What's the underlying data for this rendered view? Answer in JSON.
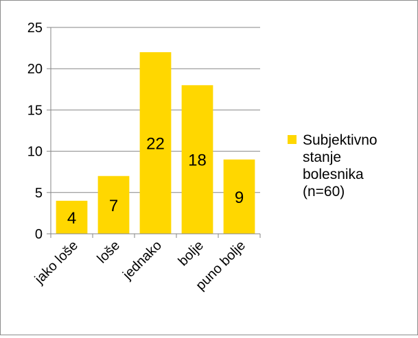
{
  "chart_data": {
    "type": "bar",
    "categories": [
      "jako loše",
      "loše",
      "jednako",
      "bolje",
      "puno bolje"
    ],
    "series": [
      {
        "name": "Subjektivno stanje bolesnika (n=60)",
        "values": [
          4,
          7,
          22,
          18,
          9
        ]
      }
    ],
    "ylim": [
      0,
      25
    ],
    "yticks": [
      0,
      5,
      10,
      15,
      20,
      25
    ],
    "grid": true,
    "legend": "right",
    "data_labels": true,
    "bar_color": "#FFD700",
    "grid_color": "#868686",
    "axis_color": "#868686",
    "legend_lines": [
      "Subjektivno",
      "stanje",
      "bolesnika",
      "(n=60)"
    ]
  }
}
